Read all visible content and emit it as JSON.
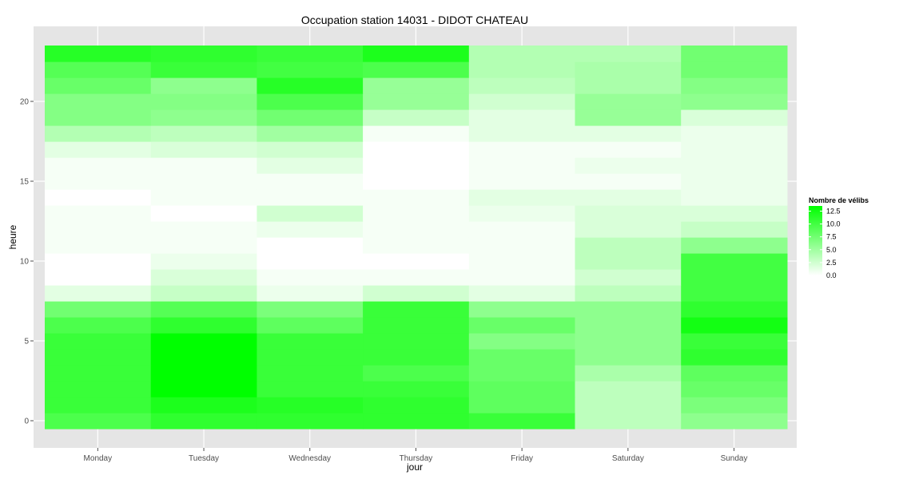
{
  "chart_data": {
    "type": "heatmap",
    "title": "Occupation station 14031 - DIDOT CHATEAU",
    "xlabel": "jour",
    "ylabel": "heure",
    "categories": [
      "Monday",
      "Tuesday",
      "Wednesday",
      "Thursday",
      "Friday",
      "Saturday",
      "Sunday"
    ],
    "y": [
      0,
      1,
      2,
      3,
      4,
      5,
      6,
      7,
      8,
      9,
      10,
      11,
      12,
      13,
      14,
      15,
      16,
      17,
      18,
      19,
      20,
      21,
      22,
      23
    ],
    "yticks": [
      0,
      5,
      10,
      15,
      20
    ],
    "ylim": [
      -0.5,
      23.5
    ],
    "legend": {
      "title": "Nombre de vélibs",
      "ticks": [
        "12.5",
        "10.0",
        "7.5",
        "5.0",
        "2.5",
        "0.0"
      ],
      "tick_values": [
        12.5,
        10.0,
        7.5,
        5.0,
        2.5,
        0.0
      ],
      "min": 0,
      "max": 13.5,
      "position": "right"
    },
    "colors": {
      "low": "#ffffff",
      "high": "#00ff00",
      "panel": "#e5e5e5",
      "grid": "#ffffff"
    },
    "grid": true,
    "values": [
      [
        9.5,
        11.0,
        11.0,
        11.0,
        10.5,
        3.5,
        6.0
      ],
      [
        10.5,
        12.0,
        11.5,
        11.0,
        8.5,
        3.5,
        7.0
      ],
      [
        10.5,
        13.5,
        10.5,
        10.5,
        8.5,
        3.5,
        8.0
      ],
      [
        10.5,
        13.5,
        10.5,
        9.5,
        8.0,
        4.5,
        8.5
      ],
      [
        10.5,
        13.5,
        10.5,
        10.5,
        8.0,
        6.0,
        11.0
      ],
      [
        10.5,
        13.5,
        10.5,
        10.5,
        6.5,
        6.0,
        10.5
      ],
      [
        9.5,
        11.0,
        8.5,
        10.5,
        8.0,
        6.0,
        12.5
      ],
      [
        7.5,
        9.0,
        7.0,
        10.5,
        6.0,
        6.0,
        11.0
      ],
      [
        1.5,
        3.0,
        1.0,
        2.5,
        1.5,
        3.5,
        10.0
      ],
      [
        0.0,
        2.0,
        0.5,
        0.5,
        0.5,
        2.5,
        10.0
      ],
      [
        0.0,
        1.0,
        0.0,
        0.0,
        0.5,
        3.5,
        10.0
      ],
      [
        0.5,
        0.5,
        0.0,
        0.5,
        0.5,
        3.5,
        6.0
      ],
      [
        0.5,
        0.5,
        1.0,
        0.5,
        0.5,
        2.0,
        3.0
      ],
      [
        0.5,
        0.0,
        2.5,
        0.5,
        1.0,
        2.0,
        2.0
      ],
      [
        0.0,
        0.5,
        0.5,
        0.5,
        1.5,
        1.5,
        1.0
      ],
      [
        0.5,
        0.5,
        0.5,
        0.0,
        0.5,
        0.5,
        1.0
      ],
      [
        0.5,
        0.5,
        1.5,
        0.0,
        0.5,
        1.0,
        1.0
      ],
      [
        1.5,
        2.0,
        2.5,
        0.0,
        0.5,
        0.5,
        1.0
      ],
      [
        4.0,
        3.5,
        5.0,
        0.5,
        1.5,
        1.5,
        1.0
      ],
      [
        6.5,
        6.0,
        7.5,
        3.0,
        1.5,
        5.5,
        2.0
      ],
      [
        6.5,
        6.5,
        9.5,
        5.5,
        2.5,
        5.5,
        6.0
      ],
      [
        8.0,
        6.0,
        11.5,
        5.5,
        3.5,
        4.5,
        6.5
      ],
      [
        9.0,
        10.5,
        10.0,
        9.5,
        4.0,
        4.5,
        7.5
      ],
      [
        11.5,
        11.0,
        10.5,
        12.0,
        4.0,
        4.0,
        7.5
      ]
    ]
  }
}
